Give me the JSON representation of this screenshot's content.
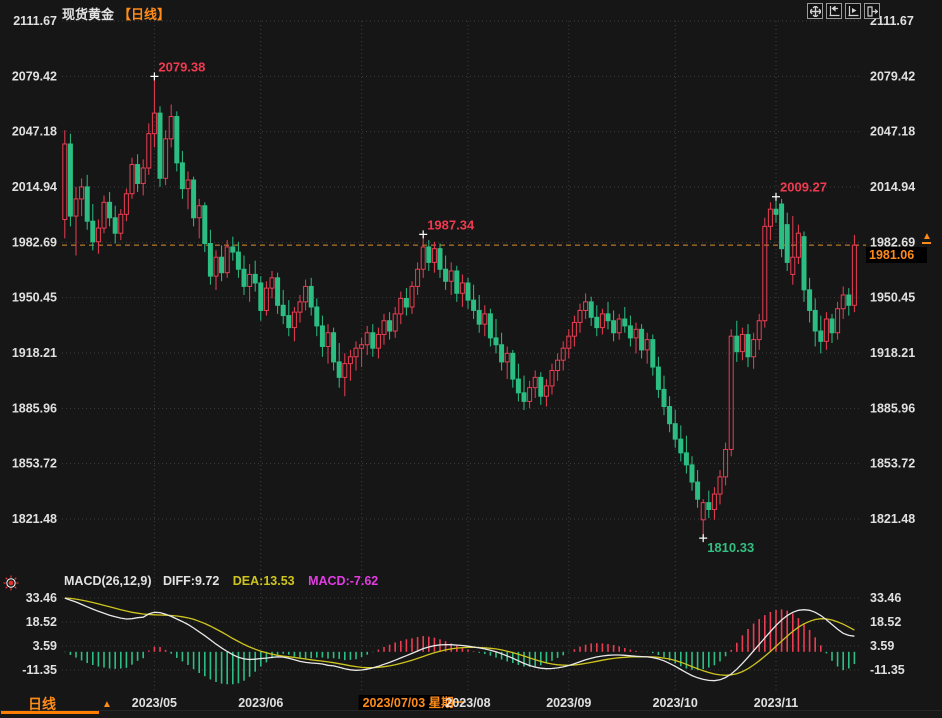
{
  "header": {
    "symbol": "现货黄金",
    "period_tag": "【日线】"
  },
  "toolbar": {
    "icons": [
      "pan-crosshair-icon",
      "scale-left-icon",
      "scale-right-icon",
      "go-to-latest-icon"
    ]
  },
  "macd_legend": {
    "name": "MACD(26,12,9)",
    "diff": "DIFF:9.72",
    "dea": "DEA:13.53",
    "macd": "MACD:-7.62"
  },
  "current_price": {
    "label": "1981.06",
    "value": 1981.06
  },
  "bottom_bar": {
    "period": "日线",
    "expander": "▲"
  },
  "colors": {
    "up": "#ea3d52",
    "down": "#2cbd82",
    "accent_orange": "#ff8c1a",
    "price_line_orange": "#d98e2b",
    "diff_line": "#e8e8e8",
    "dea_line": "#cdc41f",
    "macd_value_magenta": "#e23ce2",
    "axis_text": "#e0e0e0",
    "grid": "#3e3e3e",
    "tag_bg": "#000000",
    "annotation_high": "#ef3a50",
    "annotation_low": "#33bf80"
  },
  "chart_data": [
    {
      "type": "candlestick",
      "title": "现货黄金 日线",
      "ylabel": "price",
      "ylim": [
        1810,
        2112
      ],
      "grid": true,
      "y_ticks": [
        2111.67,
        2079.42,
        2047.18,
        2014.94,
        1982.69,
        1950.45,
        1918.21,
        1885.96,
        1853.72,
        1821.48
      ],
      "x_ticks": [
        {
          "index": 16,
          "label": "2023/05"
        },
        {
          "index": 35,
          "label": "2023/06"
        },
        {
          "index": 53,
          "label": "2023/07/03 星期一",
          "highlighted": true
        },
        {
          "index": 72,
          "label": "2023/08"
        },
        {
          "index": 90,
          "label": "2023/09"
        },
        {
          "index": 109,
          "label": "2023/10"
        },
        {
          "index": 127,
          "label": "2023/11"
        }
      ],
      "current_price": 1981.06,
      "annotations": [
        {
          "index": 16,
          "price": 2079.38,
          "label": "2079.38",
          "kind": "high"
        },
        {
          "index": 64,
          "price": 1987.34,
          "label": "1987.34",
          "kind": "high"
        },
        {
          "index": 127,
          "price": 2009.27,
          "label": "2009.27",
          "kind": "high"
        },
        {
          "index": 114,
          "price": 1810.33,
          "label": "1810.33",
          "kind": "low"
        }
      ],
      "ohlc": [
        [
          1996,
          2048,
          1985,
          2040
        ],
        [
          2040,
          2046,
          1992,
          1998
        ],
        [
          1998,
          2015,
          1975,
          2008
        ],
        [
          2008,
          2020,
          1998,
          2015
        ],
        [
          2015,
          2022,
          1990,
          1995
        ],
        [
          1995,
          2005,
          1978,
          1983
        ],
        [
          1983,
          1996,
          1976,
          1991
        ],
        [
          1991,
          2010,
          1988,
          2006
        ],
        [
          2006,
          2012,
          1992,
          1997
        ],
        [
          1997,
          2004,
          1982,
          1988
        ],
        [
          1988,
          2002,
          1984,
          1999
        ],
        [
          1999,
          2014,
          1995,
          2011
        ],
        [
          2011,
          2032,
          2008,
          2028
        ],
        [
          2028,
          2034,
          2012,
          2017
        ],
        [
          2017,
          2031,
          2010,
          2026
        ],
        [
          2026,
          2052,
          2022,
          2046
        ],
        [
          2046,
          2079.38,
          2038,
          2058
        ],
        [
          2058,
          2062,
          2015,
          2020
        ],
        [
          2020,
          2048,
          2016,
          2043
        ],
        [
          2043,
          2063,
          2038,
          2056
        ],
        [
          2056,
          2059,
          2024,
          2029
        ],
        [
          2029,
          2036,
          2008,
          2014
        ],
        [
          2014,
          2024,
          2002,
          2019
        ],
        [
          2019,
          2021,
          1992,
          1997
        ],
        [
          1997,
          2008,
          1985,
          2004
        ],
        [
          2004,
          2006,
          1977,
          1982
        ],
        [
          1982,
          1990,
          1958,
          1963
        ],
        [
          1963,
          1978,
          1955,
          1974
        ],
        [
          1974,
          1981,
          1960,
          1965
        ],
        [
          1965,
          1984,
          1962,
          1980
        ],
        [
          1980,
          1986,
          1972,
          1977
        ],
        [
          1977,
          1983,
          1962,
          1967
        ],
        [
          1967,
          1975,
          1952,
          1957
        ],
        [
          1957,
          1970,
          1948,
          1964
        ],
        [
          1964,
          1972,
          1954,
          1959
        ],
        [
          1959,
          1963,
          1937,
          1943
        ],
        [
          1943,
          1960,
          1940,
          1956
        ],
        [
          1956,
          1966,
          1950,
          1962
        ],
        [
          1962,
          1965,
          1941,
          1946
        ],
        [
          1946,
          1955,
          1935,
          1940
        ],
        [
          1940,
          1949,
          1928,
          1933
        ],
        [
          1933,
          1945,
          1925,
          1942
        ],
        [
          1942,
          1952,
          1936,
          1948
        ],
        [
          1948,
          1961,
          1943,
          1957
        ],
        [
          1957,
          1962,
          1940,
          1945
        ],
        [
          1945,
          1950,
          1928,
          1934
        ],
        [
          1934,
          1940,
          1916,
          1922
        ],
        [
          1922,
          1935,
          1912,
          1930
        ],
        [
          1930,
          1933,
          1908,
          1913
        ],
        [
          1913,
          1924,
          1898,
          1904
        ],
        [
          1904,
          1918,
          1893,
          1912
        ],
        [
          1912,
          1920,
          1902,
          1916
        ],
        [
          1916,
          1925,
          1908,
          1921
        ],
        [
          1921,
          1927,
          1910,
          1923
        ],
        [
          1923,
          1934,
          1917,
          1930
        ],
        [
          1930,
          1935,
          1916,
          1921
        ],
        [
          1921,
          1933,
          1915,
          1929
        ],
        [
          1929,
          1941,
          1923,
          1937
        ],
        [
          1937,
          1942,
          1926,
          1931
        ],
        [
          1931,
          1945,
          1927,
          1941
        ],
        [
          1941,
          1954,
          1935,
          1950
        ],
        [
          1950,
          1956,
          1940,
          1945
        ],
        [
          1945,
          1960,
          1941,
          1957
        ],
        [
          1957,
          1971,
          1952,
          1967
        ],
        [
          1967,
          1987.34,
          1962,
          1980
        ],
        [
          1980,
          1984,
          1966,
          1971
        ],
        [
          1971,
          1983,
          1965,
          1979
        ],
        [
          1979,
          1982,
          1962,
          1967
        ],
        [
          1967,
          1975,
          1955,
          1960
        ],
        [
          1960,
          1971,
          1952,
          1966
        ],
        [
          1966,
          1969,
          1948,
          1953
        ],
        [
          1953,
          1964,
          1945,
          1959
        ],
        [
          1959,
          1962,
          1944,
          1949
        ],
        [
          1949,
          1958,
          1938,
          1943
        ],
        [
          1943,
          1952,
          1930,
          1935
        ],
        [
          1935,
          1946,
          1928,
          1941
        ],
        [
          1941,
          1944,
          1922,
          1927
        ],
        [
          1927,
          1938,
          1918,
          1923
        ],
        [
          1923,
          1930,
          1908,
          1913
        ],
        [
          1913,
          1922,
          1903,
          1918
        ],
        [
          1918,
          1920,
          1898,
          1903
        ],
        [
          1903,
          1912,
          1890,
          1895
        ],
        [
          1895,
          1905,
          1885,
          1890
        ],
        [
          1890,
          1902,
          1886,
          1898
        ],
        [
          1898,
          1908,
          1892,
          1904
        ],
        [
          1904,
          1907,
          1888,
          1893
        ],
        [
          1893,
          1903,
          1887,
          1899
        ],
        [
          1899,
          1912,
          1894,
          1908
        ],
        [
          1908,
          1918,
          1902,
          1914
        ],
        [
          1914,
          1925,
          1908,
          1921
        ],
        [
          1921,
          1932,
          1915,
          1928
        ],
        [
          1928,
          1940,
          1922,
          1936
        ],
        [
          1936,
          1947,
          1930,
          1943
        ],
        [
          1943,
          1953,
          1938,
          1948
        ],
        [
          1948,
          1951,
          1934,
          1939
        ],
        [
          1939,
          1946,
          1928,
          1933
        ],
        [
          1933,
          1944,
          1929,
          1941
        ],
        [
          1941,
          1948,
          1932,
          1937
        ],
        [
          1937,
          1943,
          1925,
          1930
        ],
        [
          1930,
          1941,
          1926,
          1938
        ],
        [
          1938,
          1945,
          1930,
          1934
        ],
        [
          1934,
          1940,
          1922,
          1927
        ],
        [
          1927,
          1936,
          1918,
          1932
        ],
        [
          1932,
          1935,
          1915,
          1920
        ],
        [
          1920,
          1930,
          1912,
          1926
        ],
        [
          1926,
          1929,
          1905,
          1910
        ],
        [
          1910,
          1916,
          1892,
          1897
        ],
        [
          1897,
          1905,
          1882,
          1887
        ],
        [
          1887,
          1893,
          1872,
          1877
        ],
        [
          1877,
          1885,
          1863,
          1868
        ],
        [
          1868,
          1876,
          1855,
          1860
        ],
        [
          1860,
          1870,
          1848,
          1853
        ],
        [
          1853,
          1858,
          1838,
          1843
        ],
        [
          1843,
          1850,
          1828,
          1833
        ],
        [
          1821,
          1833,
          1810.33,
          1831
        ],
        [
          1831,
          1838,
          1822,
          1827
        ],
        [
          1827,
          1840,
          1821,
          1836
        ],
        [
          1836,
          1850,
          1830,
          1846
        ],
        [
          1846,
          1866,
          1841,
          1862
        ],
        [
          1862,
          1932,
          1858,
          1928
        ],
        [
          1928,
          1937,
          1913,
          1919
        ],
        [
          1919,
          1933,
          1914,
          1929
        ],
        [
          1929,
          1935,
          1910,
          1916
        ],
        [
          1916,
          1930,
          1909,
          1926
        ],
        [
          1926,
          1941,
          1920,
          1937
        ],
        [
          1937,
          1997,
          1933,
          1992
        ],
        [
          1992,
          2006,
          1984,
          2002
        ],
        [
          2002,
          2009.27,
          1994,
          1999
        ],
        [
          2005,
          2008,
          1974,
          1979
        ],
        [
          1993,
          2000,
          1966,
          1971
        ],
        [
          1964,
          1998,
          1958,
          1974
        ],
        [
          1974,
          1993,
          1970,
          1988
        ],
        [
          1986,
          1989,
          1948,
          1955
        ],
        [
          1955,
          1962,
          1936,
          1943
        ],
        [
          1943,
          1950,
          1922,
          1931
        ],
        [
          1931,
          1940,
          1918,
          1925
        ],
        [
          1925,
          1942,
          1920,
          1938
        ],
        [
          1938,
          1941,
          1924,
          1930
        ],
        [
          1930,
          1948,
          1926,
          1944
        ],
        [
          1944,
          1957,
          1938,
          1952
        ],
        [
          1952,
          1956,
          1940,
          1946
        ],
        [
          1946,
          1987,
          1942,
          1981.06
        ]
      ]
    },
    {
      "type": "bar",
      "title": "MACD(26,12,9)",
      "histogram_rule": "2*(diff-dea)",
      "y_ticks": [
        33.46,
        18.52,
        3.59,
        -11.35
      ],
      "legend": [
        "DIFF",
        "DEA",
        "MACD"
      ],
      "diff": [
        33.4,
        32.2,
        31,
        29.5,
        28,
        26.6,
        25.2,
        24,
        22.8,
        21.8,
        21,
        20.4,
        20.6,
        21.2,
        21.5,
        23.6,
        24.6,
        24.4,
        23.4,
        22,
        20.4,
        18.8,
        17,
        14.8,
        12.4,
        10,
        7.4,
        4.8,
        2.4,
        0.2,
        -1.8,
        -3.4,
        -4.4,
        -4.8,
        -4.6,
        -4.2,
        -3.9,
        -3.5,
        -3.1,
        -3.3,
        -4,
        -5,
        -6,
        -6.6,
        -7,
        -7.2,
        -7.6,
        -8.4,
        -8.8,
        -9.6,
        -10.6,
        -11.2,
        -11.5,
        -11.3,
        -10.8,
        -10,
        -9,
        -7.8,
        -6.6,
        -5.2,
        -3.8,
        -2.4,
        -1,
        0.5,
        2,
        3,
        3.8,
        4.3,
        4.5,
        4.4,
        4.2,
        3.9,
        3.5,
        3,
        2.4,
        1.8,
        1,
        0,
        -1.2,
        -2.6,
        -4,
        -5.6,
        -7.2,
        -8.5,
        -9.5,
        -10.2,
        -10.5,
        -10.4,
        -10,
        -9.4,
        -8.5,
        -7.4,
        -6.2,
        -5,
        -4,
        -3.2,
        -2.6,
        -2.2,
        -2,
        -2,
        -2.2,
        -2.5,
        -2.8,
        -3,
        -3.2,
        -3.6,
        -4.4,
        -5.6,
        -7.2,
        -9,
        -11,
        -13,
        -14.8,
        -16.2,
        -17.2,
        -17.8,
        -18,
        -17.4,
        -16,
        -13.8,
        -10.8,
        -7.2,
        -3.4,
        0.6,
        4.6,
        8.6,
        12.6,
        16.4,
        19.8,
        22.6,
        24.6,
        25.8,
        26.2,
        25.8,
        24.6,
        22.6,
        20,
        17,
        14,
        11.5,
        10.2,
        9.72
      ],
      "dea": [
        33.5,
        33.2,
        32.8,
        32.2,
        31.5,
        30.7,
        29.8,
        28.9,
        28,
        27.1,
        26.2,
        25.4,
        24.6,
        24,
        23.5,
        23.2,
        23,
        22.9,
        22.8,
        22.6,
        22.3,
        21.8,
        21.1,
        20.2,
        19,
        17.6,
        16,
        14.2,
        12.3,
        10.3,
        8.3,
        6.4,
        4.6,
        3,
        1.6,
        0.4,
        -0.6,
        -1.5,
        -2.2,
        -2.7,
        -3.1,
        -3.5,
        -4,
        -4.5,
        -5,
        -5.4,
        -5.8,
        -6.3,
        -6.8,
        -7.4,
        -8,
        -8.7,
        -9.2,
        -9.7,
        -9.9,
        -9.9,
        -9.7,
        -9.3,
        -8.8,
        -8.1,
        -7.2,
        -6.3,
        -5.2,
        -4.1,
        -2.9,
        -1.7,
        -0.6,
        0.4,
        1.2,
        1.8,
        2.3,
        2.6,
        2.8,
        2.8,
        2.7,
        2.5,
        2.2,
        1.8,
        1.2,
        0.4,
        -0.5,
        -1.5,
        -2.6,
        -3.8,
        -4.9,
        -6,
        -6.9,
        -7.6,
        -8.1,
        -8.3,
        -8.4,
        -8.2,
        -7.8,
        -7.2,
        -6.6,
        -5.9,
        -5.2,
        -4.6,
        -4.1,
        -3.7,
        -3.4,
        -3.2,
        -3.1,
        -3.1,
        -3.1,
        -3.2,
        -3.4,
        -3.9,
        -4.5,
        -5.4,
        -6.5,
        -7.8,
        -9.2,
        -10.5,
        -11.8,
        -12.9,
        -13.8,
        -14.4,
        -14.6,
        -14.4,
        -13.6,
        -12.3,
        -10.5,
        -8.2,
        -5.6,
        -2.8,
        0.2,
        3.4,
        6.6,
        9.8,
        12.7,
        15.3,
        17.4,
        19,
        20.1,
        20.6,
        20.5,
        19.8,
        18.6,
        17.2,
        15.4,
        13.53
      ]
    }
  ]
}
